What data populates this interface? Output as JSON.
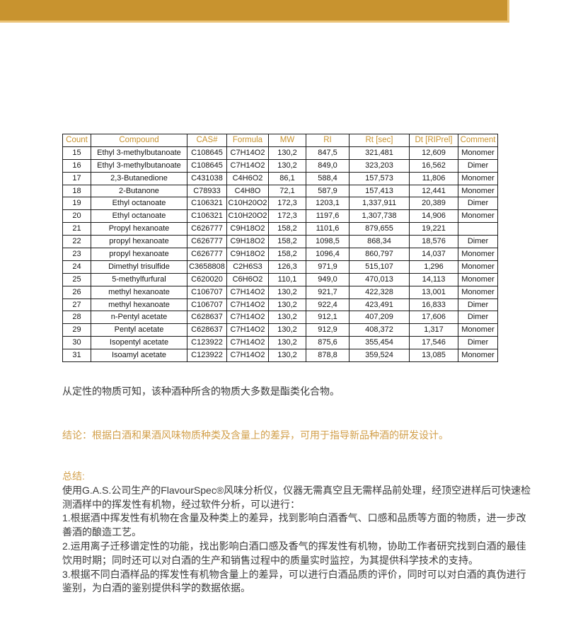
{
  "colors": {
    "accent_gold": "#C8932F",
    "accent_gold_light": "#EBC377",
    "table_border": "#1b1b1b",
    "body_text": "#3a3a3a"
  },
  "table": {
    "columns": [
      "Count",
      "Compound",
      "CAS#",
      "Formula",
      "MW",
      "RI",
      "Rt [sec]",
      "Dt [RIPrel]",
      "Comment"
    ],
    "rows": [
      [
        "15",
        "Ethyl 3-methylbutanoate",
        "C108645",
        "C7H14O2",
        "130,2",
        "847,5",
        "321,481",
        "12,609",
        "Monomer"
      ],
      [
        "16",
        "Ethyl 3-methylbutanoate",
        "C108645",
        "C7H14O2",
        "130,2",
        "849,0",
        "323,203",
        "16,562",
        "Dimer"
      ],
      [
        "17",
        "2,3-Butanedione",
        "C431038",
        "C4H6O2",
        "86,1",
        "588,4",
        "157,573",
        "11,806",
        "Monomer"
      ],
      [
        "18",
        "2-Butanone",
        "C78933",
        "C4H8O",
        "72,1",
        "587,9",
        "157,413",
        "12,441",
        "Monomer"
      ],
      [
        "19",
        "Ethyl octanoate",
        "C106321",
        "C10H20O2",
        "172,3",
        "1203,1",
        "1,337,911",
        "20,389",
        "Dimer"
      ],
      [
        "20",
        "Ethyl octanoate",
        "C106321",
        "C10H20O2",
        "172,3",
        "1197,6",
        "1,307,738",
        "14,906",
        "Monomer"
      ],
      [
        "21",
        "Propyl hexanoate",
        "C626777",
        "C9H18O2",
        "158,2",
        "1101,6",
        "879,655",
        "19,221",
        ""
      ],
      [
        "22",
        "propyl hexanoate",
        "C626777",
        "C9H18O2",
        "158,2",
        "1098,5",
        "868,34",
        "18,576",
        "Dimer"
      ],
      [
        "23",
        "propyl hexanoate",
        "C626777",
        "C9H18O2",
        "158,2",
        "1096,4",
        "860,797",
        "14,037",
        "Monomer"
      ],
      [
        "24",
        "Dimethyl trisulfide",
        "C3658808",
        "C2H6S3",
        "126,3",
        "971,9",
        "515,107",
        "1,296",
        "Monomer"
      ],
      [
        "25",
        "5-methylfurfural",
        "C620020",
        "C6H6O2",
        "110,1",
        "949,0",
        "470,013",
        "14,113",
        "Monomer"
      ],
      [
        "26",
        "methyl hexanoate",
        "C106707",
        "C7H14O2",
        "130,2",
        "921,7",
        "422,328",
        "13,001",
        "Monomer"
      ],
      [
        "27",
        "methyl hexanoate",
        "C106707",
        "C7H14O2",
        "130,2",
        "922,4",
        "423,491",
        "16,833",
        "Dimer"
      ],
      [
        "28",
        "n-Pentyl acetate",
        "C628637",
        "C7H14O2",
        "130,2",
        "912,1",
        "407,209",
        "17,606",
        "Dimer"
      ],
      [
        "29",
        "Pentyl acetate",
        "C628637",
        "C7H14O2",
        "130,2",
        "912,9",
        "408,372",
        "1,317",
        "Monomer"
      ],
      [
        "30",
        "Isopentyl acetate",
        "C123922",
        "C7H14O2",
        "130,2",
        "875,6",
        "355,454",
        "17,546",
        "Dimer"
      ],
      [
        "31",
        "Isoamyl acetate",
        "C123922",
        "C7H14O2",
        "130,2",
        "878,8",
        "359,524",
        "13,085",
        "Monomer"
      ]
    ]
  },
  "texts": {
    "observation": "从定性的物质可知，该种酒种所含的物质大多数是酯类化合物。",
    "conclusion": "结论：根据白酒和果酒风味物质种类及含量上的差异，可用于指导新品种酒的研发设计。",
    "summary_title": "总结:",
    "summary_intro": "使用G.A.S.公司生产的FlavourSpec®风味分析仪，仪器无需真空且无需样品前处理，经顶空进样后可快速检测酒样中的挥发性有机物，经过软件分析，可以进行：",
    "summary_points": [
      "1.根据酒中挥发性有机物在含量及种类上的差异，找到影响白酒香气、口感和品质等方面的物质，进一步改善酒的酿造工艺。",
      "2.运用离子迁移谱定性的功能，找出影响白酒口感及香气的挥发性有机物，协助工作者研究找到白酒的最佳饮用时期；同时还可以对白酒的生产和销售过程中的质量实时监控，为其提供科学技术的支持。",
      "3.根据不同白酒样品的挥发性有机物含量上的差异，可以进行白酒品质的评价，同时可以对白酒的真伪进行鉴别，为白酒的鉴别提供科学的数据依据。"
    ]
  }
}
